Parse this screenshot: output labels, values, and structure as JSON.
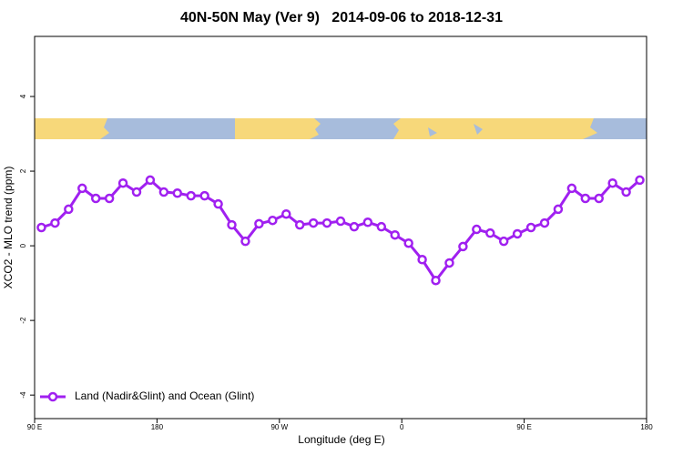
{
  "chart_data": {
    "type": "line",
    "title": "40N-50N May (Ver 9)   2014-09-06 to 2018-12-31",
    "xlabel": "Longitude (deg E)",
    "ylabel": "XCO2 - MLO trend (ppm)",
    "xlim": [
      90,
      540
    ],
    "ylim": [
      -4.63,
      5.61
    ],
    "xticks": [
      {
        "value": 90,
        "label": "90 E"
      },
      {
        "value": 180,
        "label": "180"
      },
      {
        "value": 270,
        "label": "90 W"
      },
      {
        "value": 360,
        "label": "0"
      },
      {
        "value": 450,
        "label": "90 E"
      },
      {
        "value": 540,
        "label": "180"
      }
    ],
    "yticks": [
      -4,
      -2,
      0,
      2,
      4
    ],
    "grid": false,
    "legend": "bottom-left",
    "x": [
      95,
      105,
      115,
      125,
      135,
      145,
      155,
      165,
      175,
      185,
      195,
      205,
      215,
      225,
      235,
      245,
      255,
      265,
      275,
      285,
      295,
      305,
      315,
      325,
      335,
      345,
      355,
      365,
      375,
      385,
      395,
      405,
      415,
      425,
      435,
      445,
      455,
      465,
      475,
      485,
      495,
      505,
      515,
      525,
      535
    ],
    "series": [
      {
        "name": "Land (Nadir&Glint) and Ocean (Glint)",
        "color": "#a020f0",
        "values": [
          0.49,
          0.61,
          0.98,
          1.54,
          1.27,
          1.27,
          1.68,
          1.44,
          1.76,
          1.44,
          1.41,
          1.34,
          1.34,
          1.12,
          0.56,
          0.12,
          0.59,
          0.68,
          0.85,
          0.56,
          0.61,
          0.61,
          0.66,
          0.51,
          0.63,
          0.51,
          0.29,
          0.07,
          -0.37,
          -0.93,
          -0.46,
          -0.02,
          0.44,
          0.34,
          0.12,
          0.32,
          0.49,
          0.61,
          0.98,
          1.54,
          1.27,
          1.27,
          1.68,
          1.44,
          1.76
        ]
      }
    ]
  }
}
